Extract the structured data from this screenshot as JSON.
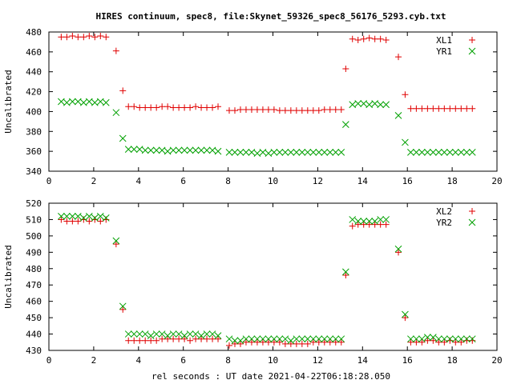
{
  "figure": {
    "title": "HIRES continuum, spec8, file:Skynet_59326_spec8_56176_5293.cyb.txt",
    "xlabel": "rel seconds : UT date 2021-04-22T06:18:28.050",
    "colors": {
      "red": "#e00000",
      "green": "#00a000",
      "axis": "#000000"
    }
  },
  "chart_data": [
    {
      "type": "scatter",
      "title": "HIRES continuum, spec8, file:Skynet_59326_spec8_56176_5293.cyb.txt",
      "xlabel": "",
      "ylabel": "Uncalibrated",
      "xlim": [
        0,
        20
      ],
      "ylim": [
        340,
        480
      ],
      "xticks": [
        0,
        2,
        4,
        6,
        8,
        10,
        12,
        14,
        16,
        18,
        20
      ],
      "yticks": [
        340,
        360,
        380,
        400,
        420,
        440,
        460,
        480
      ],
      "grid": false,
      "legend": "top-right",
      "x": [
        0.55,
        0.8,
        1.05,
        1.3,
        1.55,
        1.8,
        2.05,
        2.3,
        2.55,
        2.8,
        3.0,
        3.3,
        3.55,
        3.8,
        4.05,
        4.3,
        4.55,
        4.8,
        5.05,
        5.3,
        5.55,
        5.8,
        6.05,
        6.3,
        6.55,
        6.8,
        7.05,
        7.3,
        7.55,
        7.8,
        8.05,
        8.3,
        8.55,
        8.8,
        9.05,
        9.3,
        9.55,
        9.8,
        10.05,
        10.3,
        10.55,
        10.8,
        11.05,
        11.3,
        11.55,
        11.8,
        12.05,
        12.3,
        12.55,
        12.8,
        13.05,
        13.25,
        13.55,
        13.8,
        14.05,
        14.3,
        14.55,
        14.8,
        15.05,
        15.3,
        15.6,
        15.9,
        16.15,
        16.4,
        16.65,
        16.9,
        17.15,
        17.4,
        17.65,
        17.9,
        18.15,
        18.4,
        18.65,
        18.9
      ],
      "series": [
        {
          "name": "XL1",
          "marker": "plus",
          "color": "#e00000",
          "y": [
            475,
            475,
            476,
            475,
            475,
            476,
            475,
            476,
            475,
            null,
            461,
            421,
            405,
            405,
            404,
            404,
            404,
            404,
            405,
            405,
            404,
            404,
            404,
            404,
            405,
            404,
            404,
            404,
            405,
            null,
            401,
            401,
            402,
            402,
            402,
            402,
            402,
            402,
            402,
            401,
            401,
            401,
            401,
            401,
            401,
            401,
            401,
            402,
            402,
            402,
            402,
            443,
            473,
            472,
            473,
            474,
            473,
            473,
            472,
            null,
            455,
            417,
            403,
            403,
            403,
            403,
            403,
            403,
            403,
            403,
            403,
            403,
            403,
            403
          ]
        },
        {
          "name": "YR1",
          "marker": "cross",
          "color": "#00a000",
          "y": [
            410,
            409,
            410,
            410,
            409,
            410,
            409,
            410,
            409,
            null,
            399,
            373,
            362,
            362,
            362,
            361,
            361,
            361,
            361,
            360,
            361,
            361,
            361,
            361,
            361,
            361,
            361,
            361,
            360,
            null,
            359,
            359,
            359,
            359,
            359,
            358,
            359,
            358,
            359,
            359,
            359,
            359,
            359,
            359,
            359,
            359,
            359,
            359,
            359,
            359,
            359,
            387,
            407,
            408,
            408,
            407,
            408,
            407,
            407,
            null,
            396,
            369,
            359,
            359,
            359,
            359,
            359,
            359,
            359,
            359,
            359,
            359,
            359,
            359
          ]
        }
      ]
    },
    {
      "type": "scatter",
      "title": "",
      "xlabel": "rel seconds : UT date 2021-04-22T06:18:28.050",
      "ylabel": "Uncalibrated",
      "xlim": [
        0,
        20
      ],
      "ylim": [
        430,
        520
      ],
      "xticks": [
        0,
        2,
        4,
        6,
        8,
        10,
        12,
        14,
        16,
        18,
        20
      ],
      "yticks": [
        430,
        440,
        450,
        460,
        470,
        480,
        490,
        500,
        510,
        520
      ],
      "grid": false,
      "legend": "top-right",
      "x": [
        0.55,
        0.8,
        1.05,
        1.3,
        1.55,
        1.8,
        2.05,
        2.3,
        2.55,
        2.8,
        3.0,
        3.3,
        3.55,
        3.8,
        4.05,
        4.3,
        4.55,
        4.8,
        5.05,
        5.3,
        5.55,
        5.8,
        6.05,
        6.3,
        6.55,
        6.8,
        7.05,
        7.3,
        7.55,
        7.8,
        8.05,
        8.3,
        8.55,
        8.8,
        9.05,
        9.3,
        9.55,
        9.8,
        10.05,
        10.3,
        10.55,
        10.8,
        11.05,
        11.3,
        11.55,
        11.8,
        12.05,
        12.3,
        12.55,
        12.8,
        13.05,
        13.25,
        13.55,
        13.8,
        14.05,
        14.3,
        14.55,
        14.8,
        15.05,
        15.3,
        15.6,
        15.9,
        16.15,
        16.4,
        16.65,
        16.9,
        17.15,
        17.4,
        17.65,
        17.9,
        18.15,
        18.4,
        18.65,
        18.9
      ],
      "series": [
        {
          "name": "XL2",
          "marker": "plus",
          "color": "#e00000",
          "y": [
            510,
            509,
            509,
            509,
            510,
            509,
            510,
            509,
            510,
            null,
            495,
            455,
            436,
            436,
            436,
            436,
            436,
            436,
            437,
            437,
            437,
            437,
            437,
            436,
            437,
            437,
            437,
            437,
            437,
            null,
            433,
            434,
            434,
            435,
            435,
            435,
            435,
            435,
            435,
            435,
            434,
            434,
            434,
            434,
            434,
            435,
            435,
            435,
            435,
            435,
            435,
            476,
            506,
            507,
            507,
            507,
            507,
            507,
            507,
            null,
            490,
            450,
            435,
            435,
            435,
            436,
            436,
            435,
            435,
            436,
            435,
            435,
            436,
            436
          ]
        },
        {
          "name": "YR2",
          "marker": "cross",
          "color": "#00a000",
          "y": [
            512,
            512,
            512,
            512,
            511,
            512,
            511,
            512,
            511,
            null,
            497,
            457,
            440,
            440,
            440,
            440,
            439,
            440,
            440,
            439,
            440,
            440,
            439,
            440,
            440,
            439,
            440,
            440,
            439,
            null,
            437,
            436,
            436,
            437,
            437,
            437,
            437,
            437,
            437,
            437,
            437,
            436,
            437,
            437,
            437,
            437,
            437,
            437,
            437,
            437,
            437,
            478,
            510,
            509,
            509,
            509,
            509,
            510,
            510,
            null,
            492,
            452,
            437,
            437,
            437,
            438,
            438,
            437,
            437,
            437,
            437,
            437,
            437,
            437
          ]
        }
      ]
    }
  ]
}
